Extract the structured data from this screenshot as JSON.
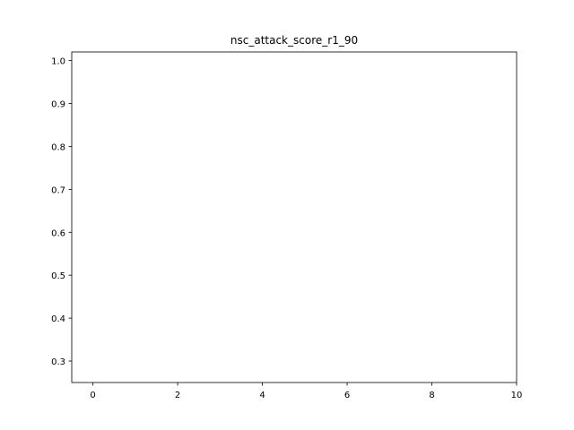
{
  "chart_data": {
    "type": "line",
    "title": "nsc_attack_score_r1_90",
    "xlabel": "",
    "ylabel": "",
    "xlim": [
      -0.5,
      10
    ],
    "ylim": [
      0.25,
      1.02
    ],
    "x_ticks": [
      0,
      2,
      4,
      6,
      8,
      10
    ],
    "x_tick_labels": [
      "0",
      "2",
      "4",
      "6",
      "8",
      "10"
    ],
    "y_ticks": [
      0.3,
      0.4,
      0.5,
      0.6,
      0.7,
      0.8,
      0.9,
      1.0
    ],
    "y_tick_labels": [
      "0.3",
      "0.4",
      "0.5",
      "0.6",
      "0.7",
      "0.8",
      "0.9",
      "1.0"
    ],
    "grid": false,
    "series": []
  }
}
